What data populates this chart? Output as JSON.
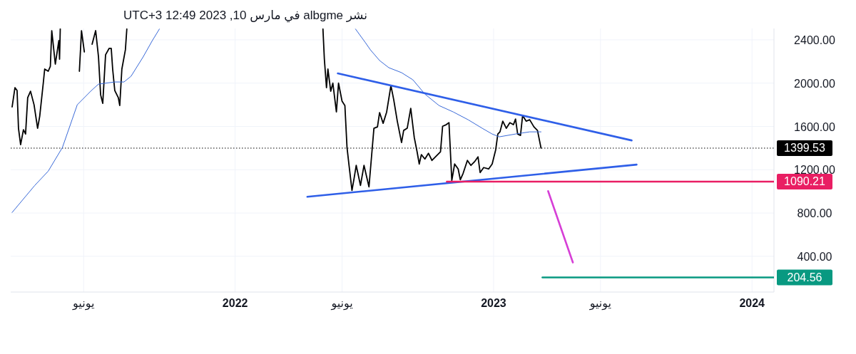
{
  "chart_data": {
    "type": "line",
    "title": "نشر albgme في مارس 10, 2023 12:49 UTC+3",
    "xlim": [
      "2021-02-18",
      "2024-02-01"
    ],
    "ylim": [
      70,
      2505
    ],
    "xticks": [
      {
        "value": "2021-06-01",
        "label": "يونيو"
      },
      {
        "value": "2022-01-01",
        "label": "2022"
      },
      {
        "value": "2022-06-01",
        "label": "يونيو"
      },
      {
        "value": "2023-01-01",
        "label": "2023"
      },
      {
        "value": "2023-06-01",
        "label": "يونيو"
      },
      {
        "value": "2024-01-01",
        "label": "2024"
      }
    ],
    "yticks": [
      {
        "value": 400,
        "label": "400.00"
      },
      {
        "value": 800,
        "label": "800.00"
      },
      {
        "value": 1200,
        "label": "1200.00"
      },
      {
        "value": 1600,
        "label": "1600.00"
      },
      {
        "value": 2000,
        "label": "2000.00"
      },
      {
        "value": 2400,
        "label": "2400.00"
      }
    ],
    "grid": true,
    "line_style": "solid",
    "marker": "none",
    "ref_lines": [
      {
        "axis": "y",
        "value": 1399.53,
        "label": "1399.53",
        "color": "#000000",
        "line_style": "dotted"
      }
    ],
    "series": [
      {
        "color": "#000000",
        "x": [
          "2021-02-20",
          "2021-02-24",
          "2021-02-27",
          "2021-03-01",
          "2021-03-04",
          "2021-03-08",
          "2021-03-11",
          "2021-03-14",
          "2021-03-18",
          "2021-03-23",
          "2021-03-28",
          "2021-03-31",
          "2021-04-05",
          "2021-04-07",
          "2021-04-12",
          "2021-04-15",
          "2021-04-17",
          "2021-04-22",
          "2021-04-27",
          "2021-04-28",
          "2021-04-29",
          "2021-05-15",
          "2021-05-26",
          "2021-05-29",
          "2021-06-02",
          "2021-06-08",
          "2021-06-13",
          "2021-06-18",
          "2021-06-22",
          "2021-06-25",
          "2021-06-28",
          "2021-07-02",
          "2021-07-07",
          "2021-07-10",
          "2021-07-12",
          "2021-07-15",
          "2021-07-20",
          "2021-07-22",
          "2021-07-25",
          "2021-07-30",
          "2021-08-01",
          "2021-11-01",
          "2022-05-05",
          "2022-05-07",
          "2022-05-10",
          "2022-05-12",
          "2022-05-16",
          "2022-05-19",
          "2022-05-24",
          "2022-05-27",
          "2022-06-01",
          "2022-06-05",
          "2022-06-08",
          "2022-06-11",
          "2022-06-15",
          "2022-06-18",
          "2022-06-21",
          "2022-06-27",
          "2022-07-02",
          "2022-07-09",
          "2022-07-12",
          "2022-07-16",
          "2022-07-21",
          "2022-07-24",
          "2022-07-29",
          "2022-08-03",
          "2022-08-09",
          "2022-08-13",
          "2022-08-18",
          "2022-08-24",
          "2022-08-27",
          "2022-09-01",
          "2022-09-06",
          "2022-09-11",
          "2022-09-15",
          "2022-09-18",
          "2022-09-21",
          "2022-09-26",
          "2022-10-01",
          "2022-10-06",
          "2022-10-11",
          "2022-10-18",
          "2022-10-21",
          "2022-10-26",
          "2022-10-30",
          "2022-11-03",
          "2022-11-07",
          "2022-11-12",
          "2022-11-15",
          "2022-11-19",
          "2022-11-25",
          "2022-11-30",
          "2022-12-05",
          "2022-12-10",
          "2022-12-13",
          "2022-12-18",
          "2022-12-25",
          "2022-12-30",
          "2023-01-04",
          "2023-01-07",
          "2023-01-10",
          "2023-01-14",
          "2023-01-19",
          "2023-01-24",
          "2023-01-29",
          "2023-02-01",
          "2023-02-04",
          "2023-02-08",
          "2023-02-11",
          "2023-02-16",
          "2023-02-21",
          "2023-02-27",
          "2023-03-04",
          "2023-03-09"
        ],
        "values": [
          1780,
          1958,
          1932,
          1583,
          1431,
          1570,
          1530,
          1866,
          1925,
          1800,
          1583,
          1695,
          2000,
          2130,
          2110,
          2156,
          2485,
          2176,
          2393,
          2222,
          2500,
          null,
          2110,
          2485,
          2288,
          null,
          2360,
          2485,
          2242,
          1892,
          1813,
          2262,
          2321,
          2321,
          2130,
          1932,
          1866,
          1793,
          2130,
          2308,
          2500,
          null,
          2500,
          2222,
          1958,
          2130,
          1925,
          2000,
          1734,
          2000,
          1833,
          1793,
          1405,
          1233,
          1009,
          1121,
          1240,
          1055,
          1240,
          1042,
          1273,
          1583,
          1596,
          1728,
          1629,
          1734,
          1978,
          1846,
          1649,
          1451,
          1563,
          1583,
          1767,
          1497,
          1365,
          1253,
          1339,
          1299,
          1352,
          1286,
          1319,
          1365,
          1602,
          1616,
          1635,
          1101,
          1253,
          1207,
          1108,
          1167,
          1286,
          1240,
          1273,
          1319,
          1174,
          1220,
          1207,
          1253,
          1385,
          1530,
          1550,
          1649,
          1583,
          1635,
          1616,
          1668,
          1530,
          1517,
          1701,
          1649,
          1662,
          1596,
          1563,
          1400
        ]
      },
      {
        "color": "#3a6ad8",
        "x": [
          "2021-02-20",
          "2021-03-24",
          "2021-04-12",
          "2021-05-02",
          "2021-05-16",
          "2021-05-23",
          "2021-06-12",
          "2021-06-22",
          "2021-07-15",
          "2021-07-28",
          "2021-08-07",
          "2021-08-24",
          "2021-09-06",
          "2021-09-16",
          "2022-01-01",
          "2022-06-20",
          "2022-07-04",
          "2022-07-11",
          "2022-07-24",
          "2022-08-06",
          "2022-08-24",
          "2022-09-09",
          "2022-09-26",
          "2022-10-16",
          "2022-11-05",
          "2022-11-26",
          "2022-12-16",
          "2022-12-30",
          "2023-01-09",
          "2023-02-01",
          "2023-02-21",
          "2023-03-09"
        ],
        "values": [
          805,
          1055,
          1187,
          1405,
          1668,
          1800,
          1932,
          1991,
          2011,
          2011,
          2064,
          2242,
          2393,
          2500,
          null,
          2500,
          2374,
          2308,
          2209,
          2143,
          2097,
          2031,
          1899,
          1793,
          1734,
          1662,
          1583,
          1530,
          1504,
          1530,
          1550,
          1550
        ]
      },
      {
        "color": "#2f5fe8",
        "x": [
          "2022-05-26",
          "2023-07-15"
        ],
        "values": [
          2090,
          1471
        ]
      },
      {
        "color": "#2f5fe8",
        "x": [
          "2022-04-13",
          "2023-07-22"
        ],
        "values": [
          950,
          1247
        ]
      },
      {
        "color": "#e91e63",
        "x": [
          "2022-10-27",
          "2024-02-01"
        ],
        "values": [
          1090.21,
          1090.21
        ],
        "value_labels": [
          null,
          "1090.21"
        ]
      },
      {
        "color": "#089981",
        "x": [
          "2023-03-11",
          "2024-02-01"
        ],
        "values": [
          204.56,
          204.56
        ],
        "value_labels": [
          null,
          "204.56"
        ]
      },
      {
        "color": "#d63fd6",
        "x": [
          "2023-03-19",
          "2023-04-23"
        ],
        "values": [
          1003,
          343
        ]
      }
    ]
  }
}
